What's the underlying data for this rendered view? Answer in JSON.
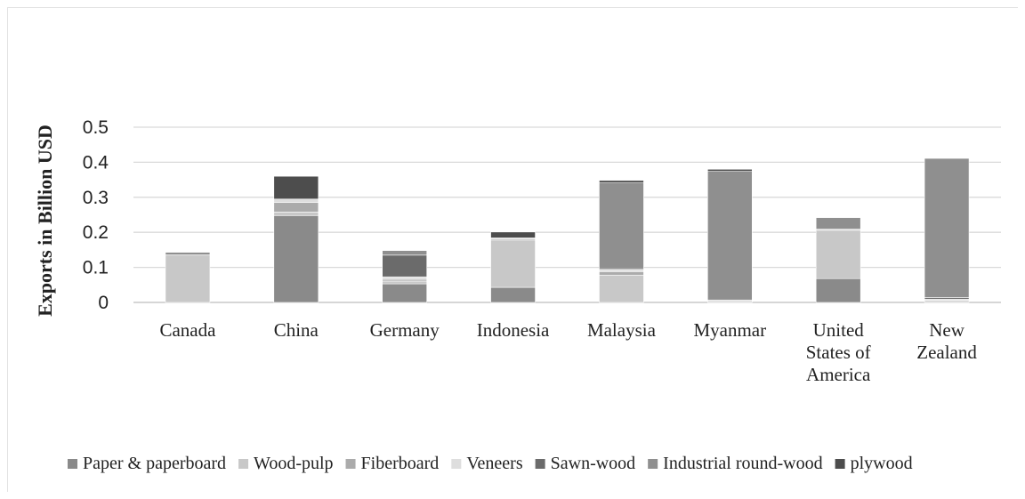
{
  "chart_data": {
    "type": "bar",
    "stacked": true,
    "title": "",
    "xlabel": "",
    "ylabel": "Exports in Billion USD",
    "ylim": [
      0,
      0.5
    ],
    "yticks": [
      "0",
      "0.1",
      "0.2",
      "0.3",
      "0.4",
      "0.5"
    ],
    "grid": true,
    "legend_position": "bottom",
    "categories": [
      [
        "Canada"
      ],
      [
        "China"
      ],
      [
        "Germany"
      ],
      [
        "Indonesia"
      ],
      [
        "Malaysia"
      ],
      [
        "Myanmar"
      ],
      [
        "United",
        "States of",
        "America"
      ],
      [
        "New",
        "Zealand"
      ]
    ],
    "series": [
      {
        "name": "Paper & paperboard",
        "color": "#8a8a8a",
        "values": [
          0.0,
          0.248,
          0.053,
          0.043,
          0.0,
          0.0,
          0.068,
          0.0
        ]
      },
      {
        "name": "Wood-pulp",
        "color": "#c8c8c8",
        "values": [
          0.133,
          0.01,
          0.008,
          0.135,
          0.078,
          0.0,
          0.138,
          0.003
        ]
      },
      {
        "name": "Fiberboard",
        "color": "#ababab",
        "values": [
          0.0,
          0.027,
          0.005,
          0.003,
          0.01,
          0.0,
          0.0,
          0.003
        ]
      },
      {
        "name": "Veneers",
        "color": "#dedede",
        "values": [
          0.0,
          0.01,
          0.007,
          0.003,
          0.005,
          0.007,
          0.003,
          0.003
        ]
      },
      {
        "name": "Sawn-wood",
        "color": "#6b6b6b",
        "values": [
          0.003,
          0.0,
          0.062,
          0.0,
          0.003,
          0.0,
          0.0,
          0.005
        ]
      },
      {
        "name": "Industrial round-wood",
        "color": "#8f8f8f",
        "values": [
          0.007,
          0.0,
          0.013,
          0.0,
          0.245,
          0.367,
          0.033,
          0.397
        ]
      },
      {
        "name": "plywood",
        "color": "#4d4d4d",
        "values": [
          0.0,
          0.065,
          0.0,
          0.017,
          0.007,
          0.006,
          0.0,
          0.0
        ]
      }
    ]
  }
}
